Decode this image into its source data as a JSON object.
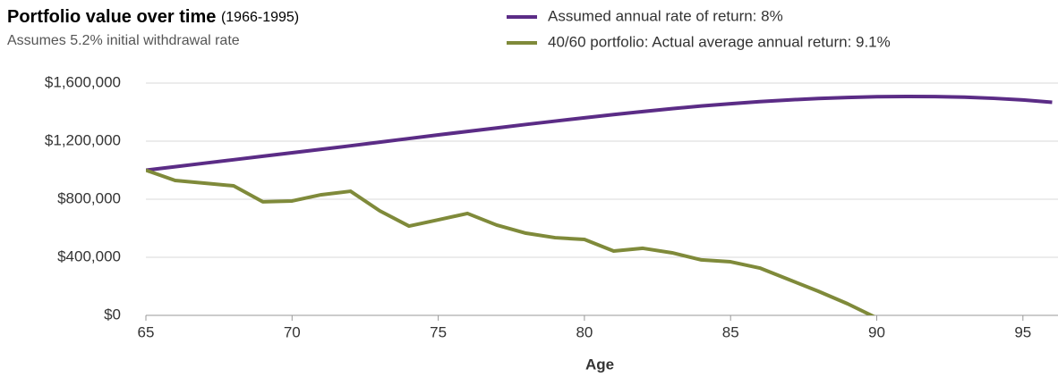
{
  "chart_data": {
    "type": "line",
    "title": "Portfolio value over time",
    "title_note": "(1966-1995)",
    "subtitle": "Assumes 5.2% initial withdrawal rate",
    "x_label": "Age",
    "x": [
      65,
      66,
      67,
      68,
      69,
      70,
      71,
      72,
      73,
      74,
      75,
      76,
      77,
      78,
      79,
      80,
      81,
      82,
      83,
      84,
      85,
      86,
      87,
      88,
      89,
      90,
      91,
      92,
      93,
      94,
      95,
      96
    ],
    "series": [
      {
        "name": "Assumed annual rate of return: 8%",
        "color": "#5b2c86",
        "values": [
          1000000,
          1024000,
          1048000,
          1072000,
          1096000,
          1120000,
          1144000,
          1168000,
          1193000,
          1218000,
          1243000,
          1267000,
          1291000,
          1315000,
          1338000,
          1361000,
          1383000,
          1404000,
          1424000,
          1442000,
          1458000,
          1472000,
          1484000,
          1494000,
          1501000,
          1506000,
          1508000,
          1507000,
          1503000,
          1495000,
          1484000,
          1468000
        ]
      },
      {
        "name": "40/60 portfolio: Actual average annual return: 9.1%",
        "color": "#7f8a3a",
        "values": [
          1000000,
          929000,
          911000,
          892000,
          782000,
          788000,
          831000,
          855000,
          720000,
          615000,
          658000,
          702000,
          622000,
          566000,
          535000,
          523000,
          443000,
          462000,
          431000,
          382000,
          369000,
          326000,
          246000,
          166000,
          80000,
          -18000,
          null,
          null,
          null,
          null,
          null,
          null
        ]
      }
    ],
    "xlim": [
      65,
      96.2
    ],
    "xticks": [
      65,
      70,
      75,
      80,
      85,
      90,
      95
    ],
    "ylim": [
      0,
      1600000
    ],
    "yticks": [
      {
        "value": 0,
        "label": "$0"
      },
      {
        "value": 400000,
        "label": "$400,000"
      },
      {
        "value": 800000,
        "label": "$800,000"
      },
      {
        "value": 1200000,
        "label": "$1,200,000"
      },
      {
        "value": 1600000,
        "label": "$1,600,000"
      }
    ],
    "grid": true,
    "legend": "top-right"
  }
}
